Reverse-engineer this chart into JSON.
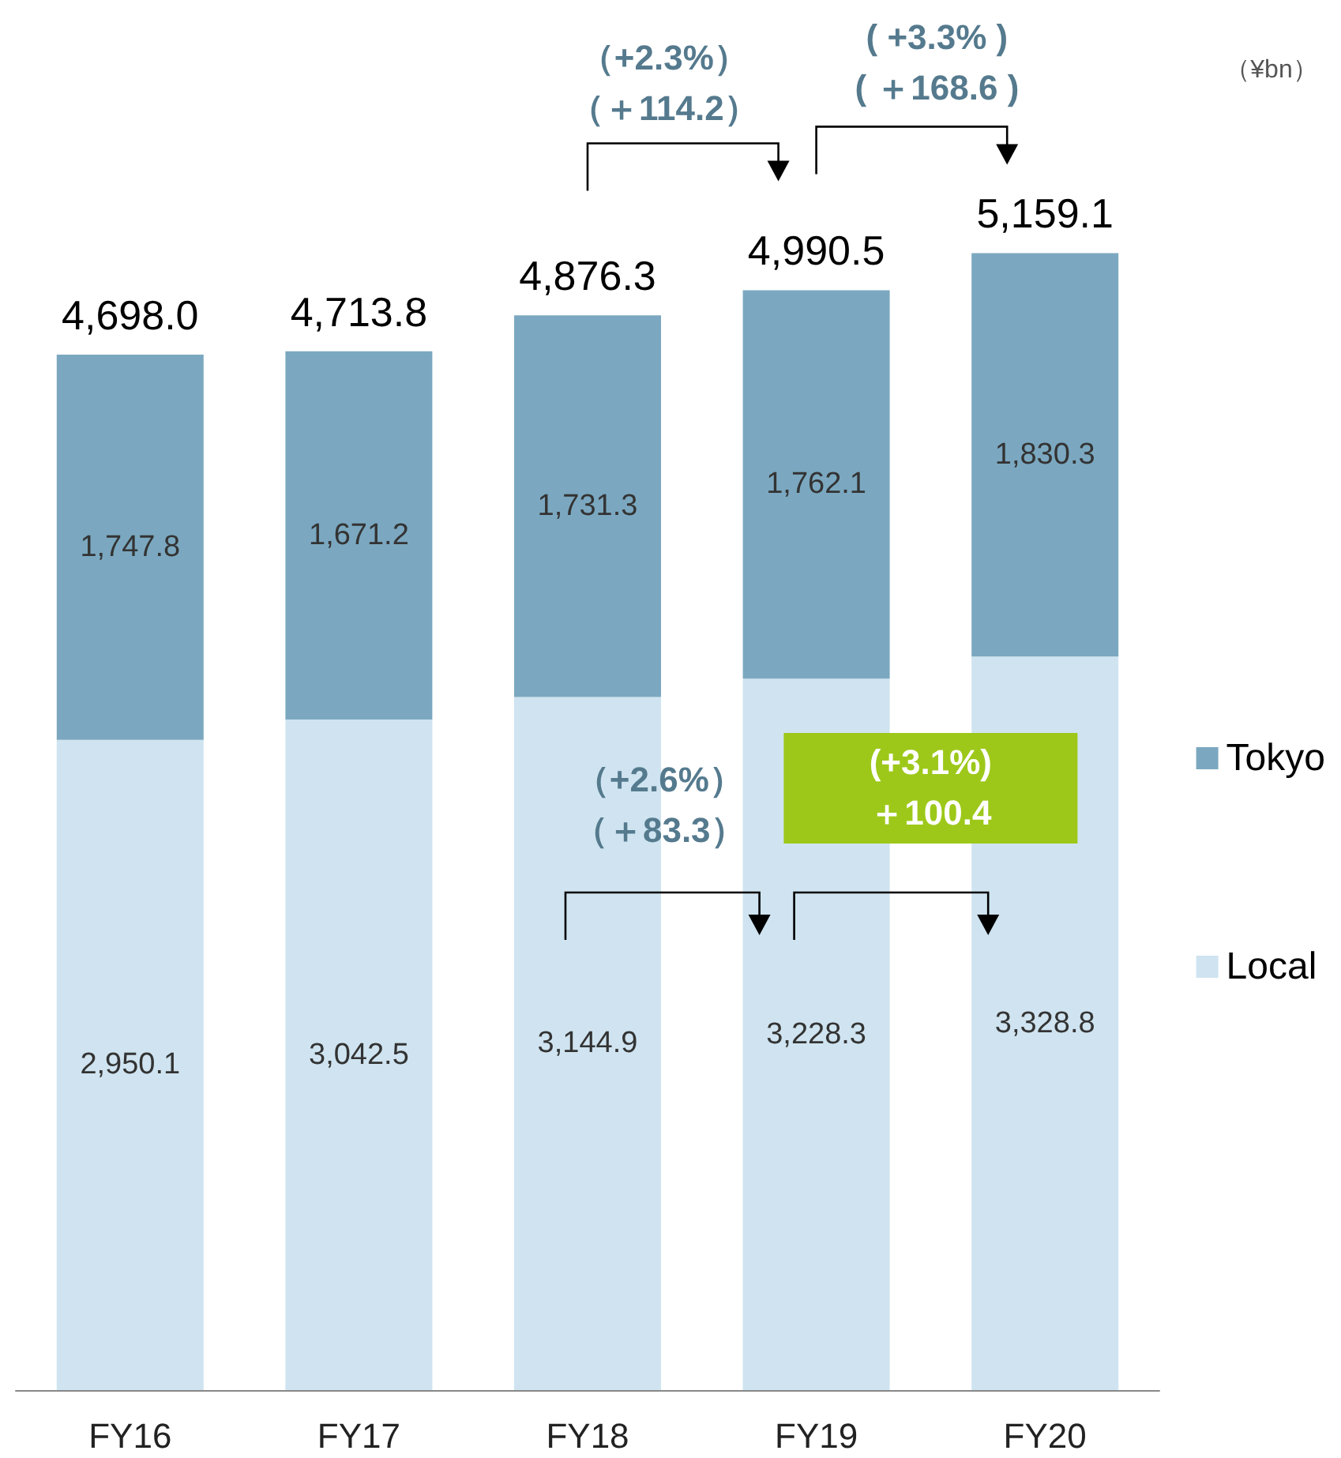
{
  "chart_data": {
    "type": "bar",
    "stacked": true,
    "categories": [
      "FY16",
      "FY17",
      "FY18",
      "FY19",
      "FY20"
    ],
    "series": [
      {
        "name": "Local",
        "color": "#cfe4f0",
        "values": [
          2950.1,
          3042.5,
          3144.9,
          3228.3,
          3328.8
        ],
        "value_labels": [
          "2,950.1",
          "3,042.5",
          "3,144.9",
          "3,228.3",
          "3,328.8"
        ]
      },
      {
        "name": "Tokyo",
        "color": "#7ba8c0",
        "values": [
          1747.8,
          1671.2,
          1731.3,
          1762.1,
          1830.3
        ],
        "value_labels": [
          "1,747.8",
          "1,671.2",
          "1,731.3",
          "1,762.1",
          "1,830.3"
        ]
      }
    ],
    "totals": [
      "4,698.0",
      "4,713.8",
      "4,876.3",
      "4,990.5",
      "5,159.1"
    ],
    "legend": "right",
    "grid": false,
    "annotations": [
      "（¥bn）",
      "（+2.3%）",
      "（＋114.2）",
      "( +3.3% )",
      "( ＋168.6 )",
      "（+2.6%）",
      "（＋83.3）",
      "(+3.1%)",
      "＋100.4"
    ]
  }
}
